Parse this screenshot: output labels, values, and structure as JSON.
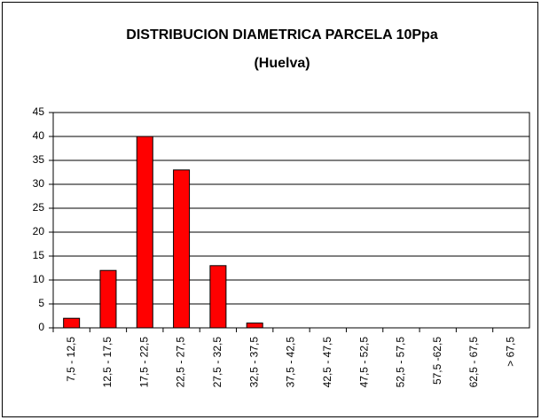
{
  "chart_data": {
    "type": "bar",
    "title": "DISTRIBUCION DIAMETRICA PARCELA 10Ppa",
    "subtitle": "(Huelva)",
    "categories": [
      "7,5 - 12,5",
      "12,5 - 17,5",
      "17,5 - 22,5",
      "22,5 - 27,5",
      "27,5 - 32,5",
      "32,5 - 37,5",
      "37,5 - 42,5",
      "42,5 - 47,5",
      "47,5 - 52,5",
      "52,5 - 57,5",
      "57,5 -62,5",
      "62,5 - 67,5",
      "> 67,5"
    ],
    "values": [
      2,
      12,
      40,
      33,
      13,
      1,
      0,
      0,
      0,
      0,
      0,
      0,
      0
    ],
    "color": "#ff0000",
    "ylim": [
      0,
      45
    ],
    "yticks": [
      0,
      5,
      10,
      15,
      20,
      25,
      30,
      35,
      40,
      45
    ],
    "grid": true
  }
}
